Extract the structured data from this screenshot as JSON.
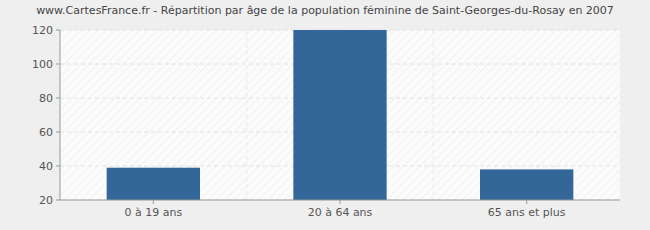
{
  "chart_data": {
    "type": "bar",
    "title": "www.CartesFrance.fr - Répartition par âge de la population féminine de Saint-Georges-du-Rosay en 2007",
    "categories": [
      "0 à 19 ans",
      "20 à 64 ans",
      "65 ans et plus"
    ],
    "values": [
      39,
      120,
      38
    ],
    "color": "#336699",
    "ylim": [
      20,
      120
    ],
    "yticks": [
      20,
      40,
      60,
      80,
      100,
      120
    ],
    "grid": true
  }
}
